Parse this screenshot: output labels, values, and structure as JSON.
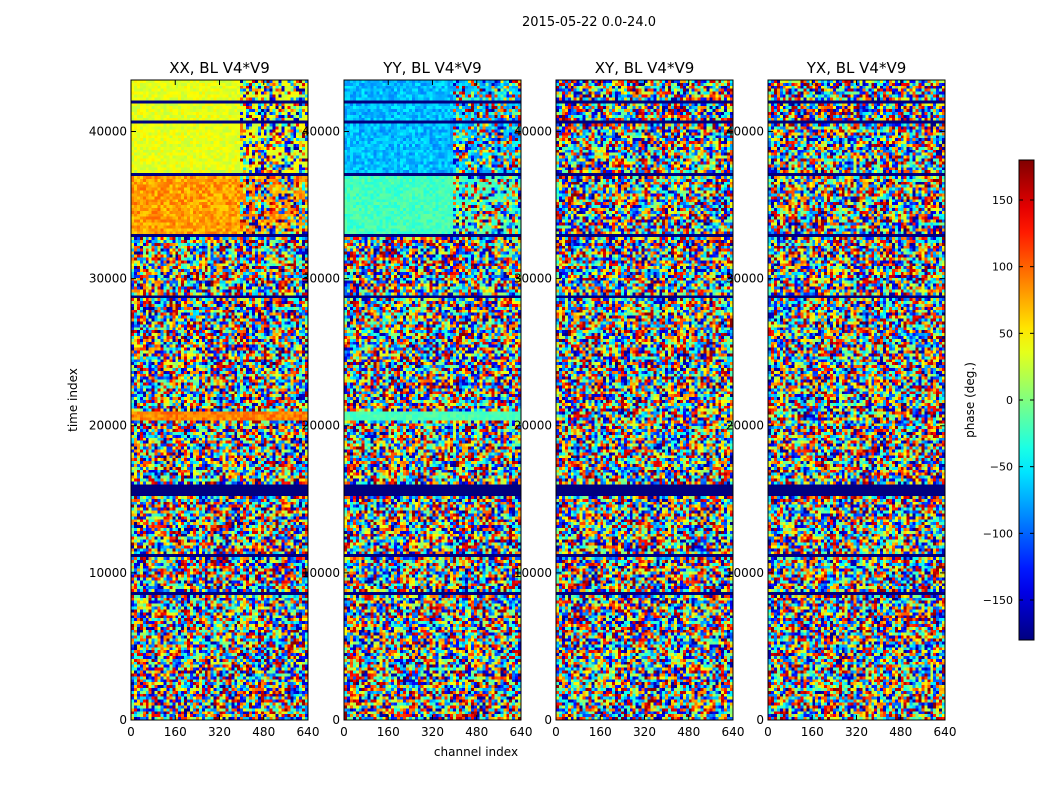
{
  "figure_title": "2015-05-22 0.0-24.0",
  "chart_data": {
    "type": "heatmap",
    "title": "2015-05-22 0.0-24.0",
    "xlabel": "channel index",
    "ylabel": "time index",
    "xlim": [
      0,
      640
    ],
    "ylim": [
      0,
      43500
    ],
    "x_ticks": [
      0,
      160,
      320,
      480,
      640
    ],
    "y_ticks": [
      0,
      10000,
      20000,
      30000,
      40000
    ],
    "panels": [
      {
        "title": "XX, BL V4*V9",
        "polarization": "XX"
      },
      {
        "title": "YY, BL V4*V9",
        "polarization": "YY"
      },
      {
        "title": "XY, BL V4*V9",
        "polarization": "XY"
      },
      {
        "title": "YX, BL V4*V9",
        "polarization": "YX"
      }
    ],
    "colorbar": {
      "label": "phase (deg.)",
      "range": [
        -180,
        180
      ],
      "ticks": [
        150,
        100,
        50,
        0,
        -50,
        -100,
        -150
      ],
      "tick_labels": [
        "150",
        "100",
        "50",
        "0",
        "−50",
        "−100",
        "−150"
      ],
      "colormap": "jet"
    },
    "flagged_time_rows": [
      8700,
      11200,
      15500,
      28800,
      33000,
      37200,
      40800,
      42100
    ]
  }
}
